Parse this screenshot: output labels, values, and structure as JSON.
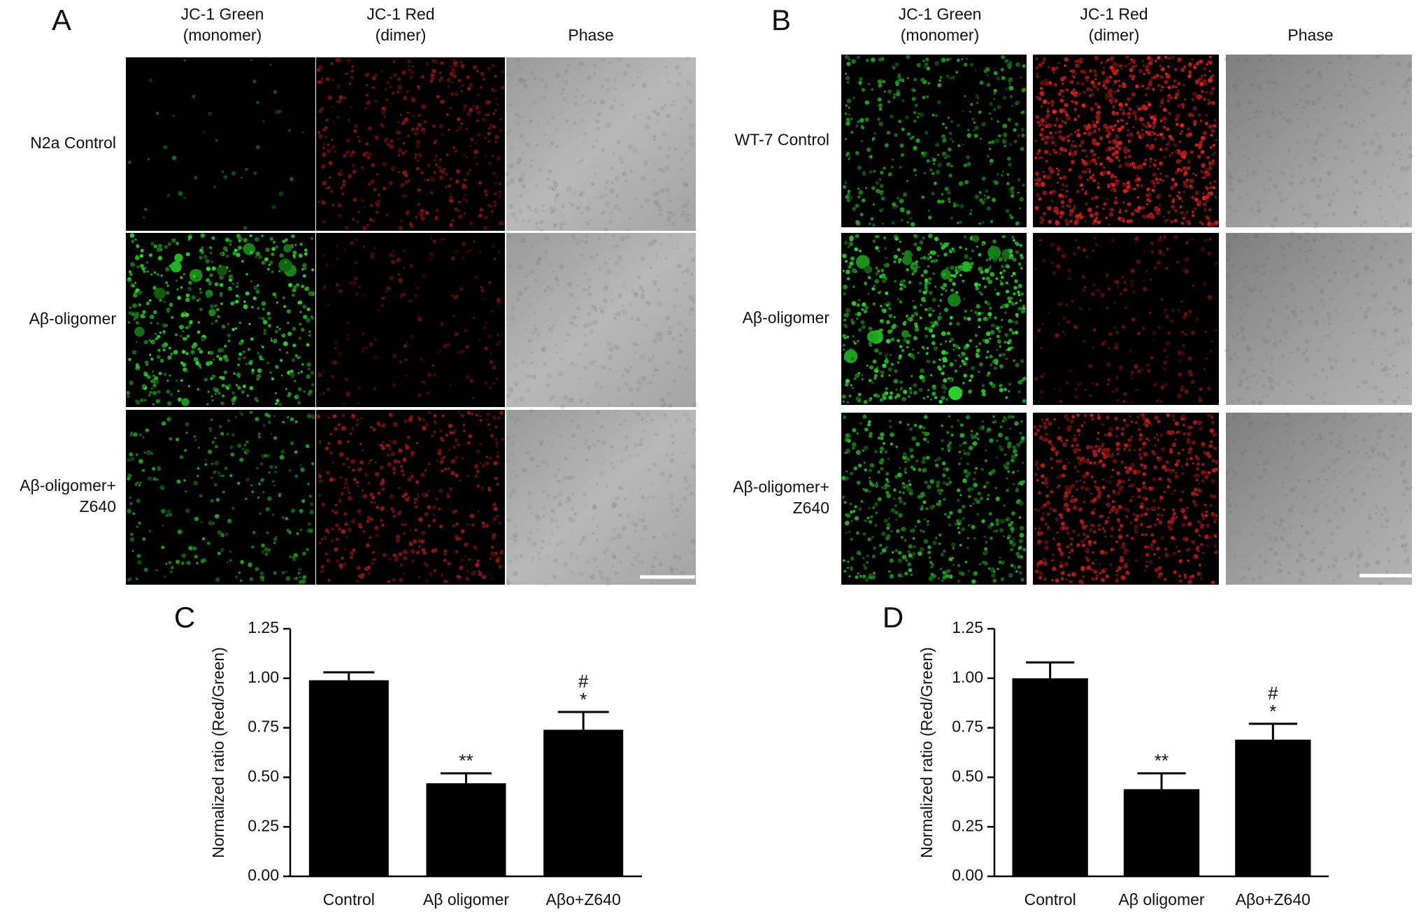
{
  "panels": [
    {
      "label": "A",
      "column_titles": [
        [
          "JC-1 Green",
          "(monomer)"
        ],
        [
          "JC-1 Red",
          "(dimer)"
        ],
        [
          "Phase"
        ]
      ],
      "row_labels": [
        [
          "N2a Control"
        ],
        [
          "Aβ-oligomer"
        ],
        [
          "Aβ-oligomer+",
          "Z640"
        ]
      ]
    },
    {
      "label": "B",
      "column_titles": [
        [
          "JC-1 Green",
          "(monomer)"
        ],
        [
          "JC-1 Red",
          "(dimer)"
        ],
        [
          "Phase"
        ]
      ],
      "row_labels": [
        [
          "WT-7 Control"
        ],
        [
          "Aβ-oligomer"
        ],
        [
          "Aβ-oligomer+",
          "Z640"
        ]
      ]
    }
  ],
  "chart_data": [
    {
      "type": "bar",
      "panel_label": "C",
      "y_label": "Normalized ratio (Red/Green)",
      "categories": [
        "Control",
        "Aβ oligomer",
        "Aβo+Z640"
      ],
      "values": [
        0.99,
        0.47,
        0.74
      ],
      "errors": [
        0.04,
        0.05,
        0.09
      ],
      "significance_labels": [
        null,
        [
          "**"
        ],
        [
          "#",
          "*"
        ]
      ],
      "color": "#000000",
      "ylim": [
        0,
        1.25
      ],
      "yticks": [
        {
          "value": 0,
          "label": "0.00"
        },
        0.25,
        {
          "value": 0.5,
          "label": "0.50"
        },
        0.75,
        {
          "value": 1,
          "label": "1.00"
        },
        1.25
      ]
    },
    {
      "type": "bar",
      "panel_label": "D",
      "y_label": "Normalized ratio (Red/Green)",
      "categories": [
        "Control",
        "Aβ oligomer",
        "Aβo+Z640"
      ],
      "values": [
        1.0,
        0.44,
        0.69
      ],
      "errors": [
        0.08,
        0.08,
        0.08
      ],
      "significance_labels": [
        null,
        [
          "**"
        ],
        [
          "#",
          "*"
        ]
      ],
      "color": "#000000",
      "ylim": [
        0,
        1.25
      ],
      "yticks": [
        {
          "value": 0,
          "label": "0.00"
        },
        0.25,
        {
          "value": 0.5,
          "label": "0.50"
        },
        0.75,
        {
          "value": 1,
          "label": "1.00"
        },
        1.25
      ]
    }
  ]
}
